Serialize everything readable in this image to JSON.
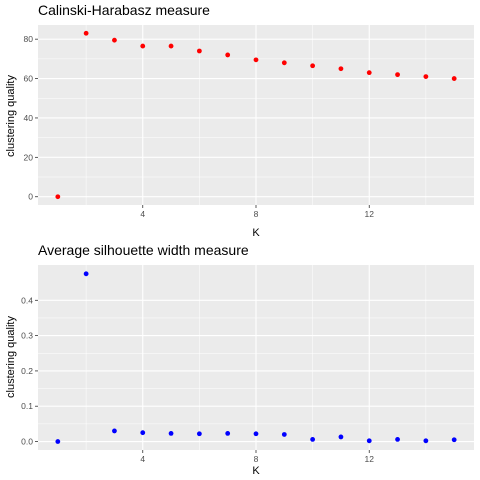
{
  "chart_data": [
    {
      "type": "scatter",
      "title": "Calinski-Harabasz measure",
      "xlabel": "K",
      "ylabel": "clustering quality",
      "color": "#ff0000",
      "x": [
        1,
        2,
        3,
        4,
        5,
        6,
        7,
        8,
        9,
        10,
        11,
        12,
        13,
        14,
        15
      ],
      "y": [
        0,
        83,
        79.5,
        76.5,
        76.5,
        74,
        72,
        69.5,
        68,
        66.5,
        65,
        63,
        62,
        61,
        60
      ],
      "xlim": [
        0.3,
        15.7
      ],
      "ylim": [
        -4.2,
        87.2
      ],
      "xticks": [
        4,
        8,
        12
      ],
      "xtick_labels": [
        "4",
        "8",
        "12"
      ],
      "yticks": [
        0,
        20,
        40,
        60,
        80
      ],
      "ytick_labels": [
        "0",
        "20",
        "40",
        "60",
        "80"
      ],
      "grid": true,
      "background": "#ebebeb"
    },
    {
      "type": "scatter",
      "title": "Average silhouette width measure",
      "xlabel": "K",
      "ylabel": "clustering quality",
      "color": "#0000ff",
      "x": [
        1,
        2,
        3,
        4,
        5,
        6,
        7,
        8,
        9,
        10,
        11,
        12,
        13,
        14,
        15
      ],
      "y": [
        0,
        0.475,
        0.03,
        0.025,
        0.023,
        0.022,
        0.023,
        0.022,
        0.02,
        0.006,
        0.013,
        0.002,
        0.006,
        0.002,
        0.005
      ],
      "xlim": [
        0.3,
        15.7
      ],
      "ylim": [
        -0.024,
        0.5
      ],
      "xticks": [
        4,
        8,
        12
      ],
      "xtick_labels": [
        "4",
        "8",
        "12"
      ],
      "yticks": [
        0,
        0.1,
        0.2,
        0.3,
        0.4
      ],
      "ytick_labels": [
        "0.0",
        "0.1",
        "0.2",
        "0.3",
        "0.4"
      ],
      "grid": true,
      "background": "#ebebeb"
    }
  ]
}
